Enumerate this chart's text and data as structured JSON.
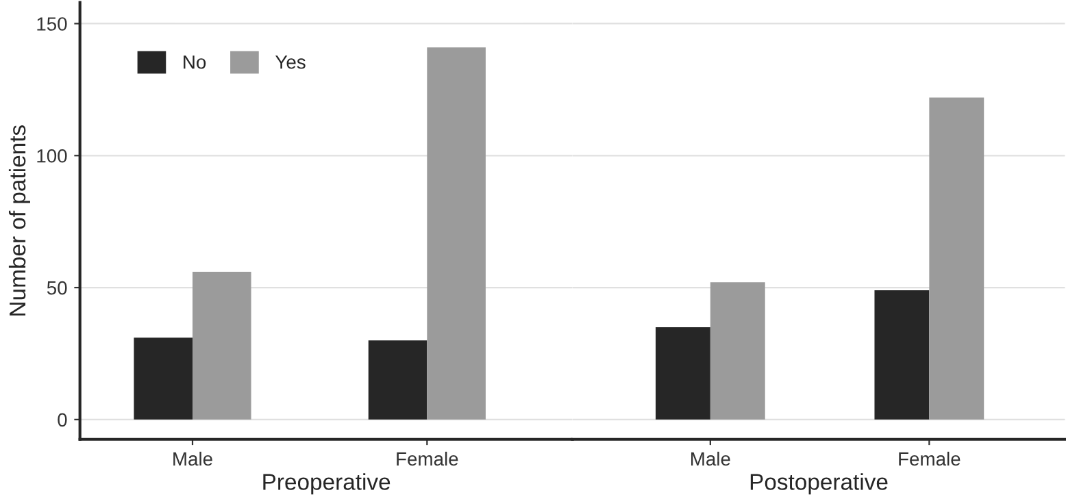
{
  "chart_data": [
    {
      "type": "bar",
      "categories": [
        "Male",
        "Female"
      ],
      "xlabel": "Preoperative",
      "ylabel": "Number of patients",
      "ylim": [
        -7.5,
        158
      ],
      "yticks": [
        0,
        50,
        100,
        150
      ],
      "grid": "y",
      "legend": "top left",
      "series": [
        {
          "name": "No",
          "color": "#262626",
          "values": [
            31,
            30
          ]
        },
        {
          "name": "Yes",
          "color": "#9b9b9b",
          "values": [
            56,
            141
          ]
        }
      ]
    },
    {
      "type": "bar",
      "categories": [
        "Male",
        "Female"
      ],
      "xlabel": "Postoperative",
      "ylim": [
        -7.5,
        158
      ],
      "yticks": [
        0,
        50,
        100,
        150
      ],
      "grid": "y",
      "tick_labels": "x",
      "series": [
        {
          "color": "#262626",
          "values": [
            35,
            49
          ]
        },
        {
          "color": "#9b9b9b",
          "values": [
            52,
            122
          ]
        }
      ]
    }
  ]
}
